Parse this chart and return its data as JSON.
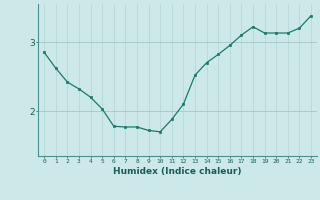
{
  "x": [
    0,
    1,
    2,
    3,
    4,
    5,
    6,
    7,
    8,
    9,
    10,
    11,
    12,
    13,
    14,
    15,
    16,
    17,
    18,
    19,
    20,
    21,
    22,
    23
  ],
  "y": [
    2.85,
    2.62,
    2.42,
    2.32,
    2.2,
    2.03,
    1.78,
    1.77,
    1.77,
    1.72,
    1.7,
    1.88,
    2.1,
    2.52,
    2.7,
    2.82,
    2.95,
    3.1,
    3.22,
    3.13,
    3.13,
    3.13,
    3.2,
    3.38
  ],
  "line_color": "#1a7a6e",
  "marker_color": "#1a7a6e",
  "bg_color": "#cce8e8",
  "plot_bg_color": "#cce8e8",
  "grid_color_v": "#b0d4d4",
  "grid_color_h": "#a8cccc",
  "xlabel": "Humidex (Indice chaleur)",
  "xlabel_color": "#1a5c5c",
  "ylabel_ticks": [
    2,
    3
  ],
  "ylim": [
    1.35,
    3.55
  ],
  "xlim": [
    -0.5,
    23.5
  ],
  "tick_color": "#1a5c5c",
  "axis_color": "#4a9090",
  "xticklabels": [
    "0",
    "1",
    "2",
    "3",
    "4",
    "5",
    "6",
    "7",
    "8",
    "9",
    "10",
    "11",
    "12",
    "13",
    "14",
    "15",
    "16",
    "17",
    "18",
    "19",
    "20",
    "21",
    "22",
    "23"
  ]
}
